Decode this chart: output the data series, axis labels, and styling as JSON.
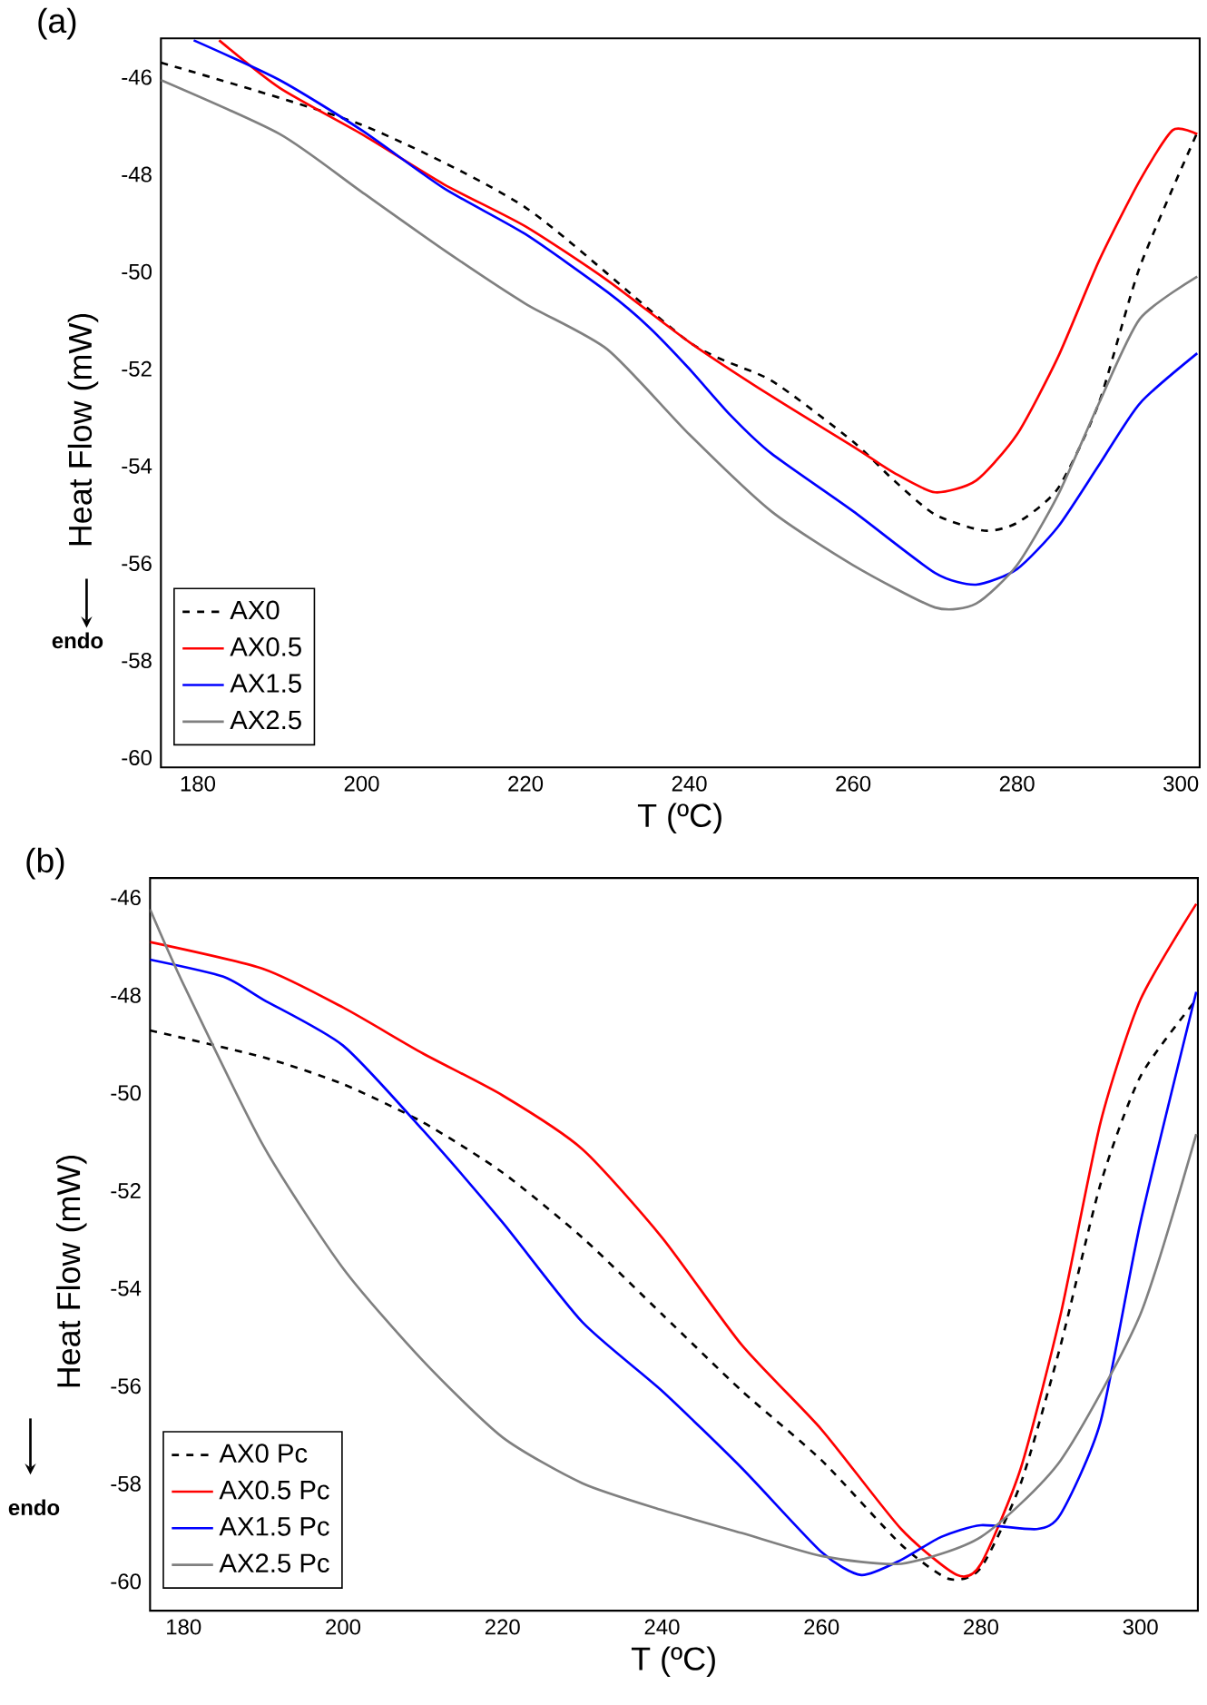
{
  "chart_data": [
    {
      "type": "line",
      "title": "(a)",
      "xlabel": "T (ºC)",
      "ylabel": "Heat Flow (mW)",
      "annotations": [
        "endo"
      ],
      "xlim": [
        175.5,
        302.3
      ],
      "ylim": [
        -60.2,
        -45.2
      ],
      "xticks": [
        180,
        200,
        220,
        240,
        260,
        280,
        300
      ],
      "yticks": [
        -60,
        -58,
        -56,
        -54,
        -52,
        -50,
        -48,
        -46
      ],
      "grid": false,
      "legend": "bottom left",
      "marker": "none",
      "series": [
        {
          "name": "AX0",
          "color": "#000000",
          "line_style": "dashed",
          "x": [
            175.5,
            200,
            220,
            240,
            250,
            260,
            265,
            270,
            276,
            280,
            285,
            290,
            295,
            302
          ],
          "values": [
            -45.7,
            -46.98,
            -48.68,
            -51.45,
            -52.24,
            -53.5,
            -54.3,
            -55.0,
            -55.33,
            -55.17,
            -54.46,
            -52.7,
            -49.9,
            -47.14
          ]
        },
        {
          "name": "AX0.5",
          "color": "#ff0000",
          "line_style": "solid",
          "x": [
            182.6,
            190,
            200,
            210,
            220,
            230,
            240,
            250,
            260,
            265,
            270,
            275,
            280,
            285,
            290,
            295,
            299,
            302
          ],
          "values": [
            -45.24,
            -46.22,
            -47.17,
            -48.2,
            -49.07,
            -50.18,
            -51.45,
            -52.56,
            -53.6,
            -54.14,
            -54.54,
            -54.3,
            -53.35,
            -51.76,
            -49.78,
            -48.12,
            -47.09,
            -47.17
          ]
        },
        {
          "name": "AX1.5",
          "color": "#0000ff",
          "line_style": "solid",
          "x": [
            179.5,
            190,
            200,
            210,
            220,
            230,
            235,
            240,
            245,
            250,
            260,
            270,
            275,
            280,
            285,
            290,
            295,
            302
          ],
          "values": [
            -45.24,
            -46.06,
            -47.09,
            -48.28,
            -49.23,
            -50.42,
            -51.13,
            -52.0,
            -52.95,
            -53.74,
            -54.93,
            -56.2,
            -56.44,
            -56.12,
            -55.25,
            -53.98,
            -52.71,
            -51.68
          ]
        },
        {
          "name": "AX2.5",
          "color": "#808080",
          "line_style": "solid",
          "x": [
            175.5,
            190,
            200,
            210,
            220,
            230,
            240,
            250,
            260,
            270,
            275,
            280,
            285,
            290,
            295,
            302
          ],
          "values": [
            -46.06,
            -47.17,
            -48.36,
            -49.55,
            -50.66,
            -51.6,
            -53.35,
            -54.93,
            -56.04,
            -56.91,
            -56.83,
            -56.04,
            -54.6,
            -52.71,
            -50.97,
            -50.1
          ]
        }
      ]
    },
    {
      "type": "line",
      "title": "(b)",
      "xlabel": "T (ºC)",
      "ylabel": "Heat Flow (mW)",
      "annotations": [
        "endo"
      ],
      "xlim": [
        175.8,
        307.2
      ],
      "ylim": [
        -60.6,
        -45.6
      ],
      "xticks": [
        180,
        200,
        220,
        240,
        260,
        280,
        300
      ],
      "yticks": [
        -60,
        -58,
        -56,
        -54,
        -52,
        -50,
        -48,
        -46
      ],
      "grid": false,
      "legend": "bottom left",
      "marker": "none",
      "series": [
        {
          "name": "AX0 Pc",
          "color": "#000000",
          "line_style": "dashed",
          "x": [
            175.8,
            190,
            200,
            210,
            220,
            230,
            240,
            250,
            260,
            270,
            276,
            280,
            285,
            290,
            295,
            300,
            307
          ],
          "values": [
            -48.72,
            -49.27,
            -49.82,
            -50.6,
            -51.63,
            -52.96,
            -54.53,
            -56.1,
            -57.52,
            -59.25,
            -59.95,
            -59.72,
            -57.99,
            -55.16,
            -51.86,
            -49.66,
            -48.09
          ]
        },
        {
          "name": "AX0.5 Pc",
          "color": "#ff0000",
          "line_style": "solid",
          "x": [
            175.8,
            190,
            200,
            210,
            220,
            230,
            240,
            250,
            260,
            270,
            277,
            280,
            285,
            290,
            295,
            300,
            307
          ],
          "values": [
            -46.91,
            -47.46,
            -48.25,
            -49.19,
            -50.05,
            -51.15,
            -52.96,
            -55.16,
            -56.89,
            -58.93,
            -59.87,
            -59.64,
            -57.68,
            -54.53,
            -50.6,
            -48.09,
            -46.13
          ]
        },
        {
          "name": "AX1.5 Pc",
          "color": "#0000ff",
          "line_style": "solid",
          "x": [
            175.8,
            185,
            190,
            200,
            210,
            220,
            230,
            240,
            250,
            260,
            265,
            270,
            275,
            280,
            287,
            290,
            295,
            300,
            307
          ],
          "values": [
            -47.27,
            -47.62,
            -48.09,
            -49.03,
            -50.76,
            -52.65,
            -54.69,
            -56.1,
            -57.68,
            -59.4,
            -59.87,
            -59.56,
            -59.09,
            -58.85,
            -58.93,
            -58.62,
            -56.73,
            -52.65,
            -47.93
          ]
        },
        {
          "name": "AX2.5 Pc",
          "color": "#808080",
          "line_style": "solid",
          "x": [
            175.8,
            180,
            190,
            200,
            210,
            220,
            230,
            240,
            250,
            260,
            270,
            280,
            290,
            300,
            307
          ],
          "values": [
            -46.24,
            -47.78,
            -51.08,
            -53.59,
            -55.48,
            -57.05,
            -57.99,
            -58.54,
            -59.01,
            -59.48,
            -59.64,
            -59.09,
            -57.52,
            -54.53,
            -50.84
          ]
        }
      ]
    }
  ]
}
